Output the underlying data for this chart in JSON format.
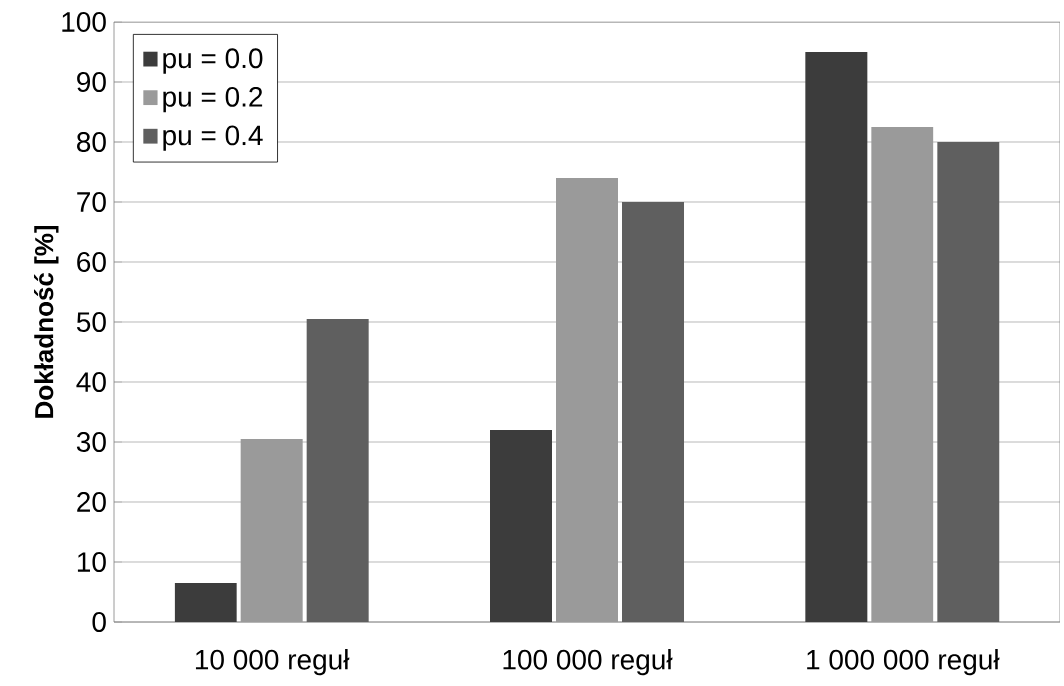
{
  "chart_data": {
    "type": "bar",
    "ylabel": "Dokładność [%]",
    "categories": [
      "10 000 reguł",
      "100 000 reguł",
      "1 000 000 reguł"
    ],
    "series": [
      {
        "name": "pu = 0.0",
        "color": "#3c3c3c",
        "values": [
          6.5,
          32,
          95
        ]
      },
      {
        "name": "pu = 0.2",
        "color": "#9a9a9a",
        "values": [
          30.5,
          74,
          82.5
        ]
      },
      {
        "name": "pu = 0.4",
        "color": "#5f5f5f",
        "values": [
          50.5,
          70,
          80
        ]
      }
    ],
    "ylim": [
      0,
      100
    ],
    "yticks": [
      0,
      10,
      20,
      30,
      40,
      50,
      60,
      70,
      80,
      90,
      100
    ],
    "grid": "y",
    "legend": "top left"
  }
}
